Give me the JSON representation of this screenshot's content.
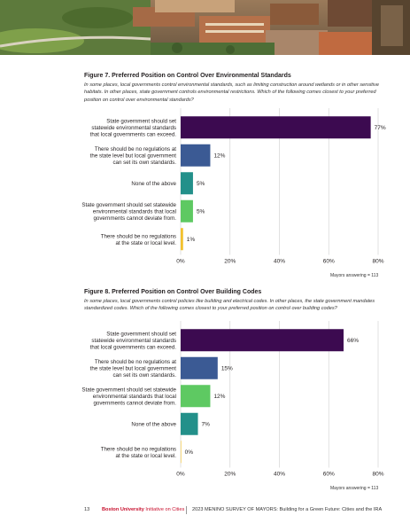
{
  "figures": [
    {
      "title": "Figure 7. Preferred Position on Control Over Environmental Standards",
      "intro": "In some places, local governments control environmental standards, such as limiting construction around wetlands or in other sensitive habitats. In other places, state government controls environmental restrictions. Which of the following comes closest to your preferred position on control over environmental standards?",
      "note": "Mayors answering = 113"
    },
    {
      "title": "Figure 8. Preferred Position on Control Over Building Codes",
      "intro": "In some places, local governments control policies like building and electrical codes. In other places, the state government mandates standardized codes. Which of the following comes closest to your preferred position on control over building codes?",
      "note": "Mayors answering = 113"
    }
  ],
  "chart_data": [
    {
      "type": "bar",
      "orientation": "horizontal",
      "categories": [
        "State government should set statewide environmental standards that local governments can exceed.",
        "There should be no regulations at the state level but local government can set its own standards.",
        "None of the above",
        "State government should set statewide environmental standards that local governments cannot deviate from.",
        "There should be no regulations at the state or local level."
      ],
      "category_lines": [
        [
          "State government should set",
          "statewide environmental standards",
          "that local governments can exceed."
        ],
        [
          "There should be no regulations at",
          "the state level but local government",
          "can set its own standards."
        ],
        [
          "None of the above"
        ],
        [
          "State government should set statewide",
          "environmental standards that local",
          "governments cannot deviate from."
        ],
        [
          "There should be no regulations",
          "at the state or local level."
        ]
      ],
      "values": [
        77,
        12,
        5,
        5,
        1
      ],
      "value_labels": [
        "77%",
        "12%",
        "5%",
        "5%",
        "1%"
      ],
      "colors": [
        "#3c0a50",
        "#3b5a94",
        "#23908a",
        "#5ec962",
        "#f2c12e"
      ],
      "xlim": [
        0,
        80
      ],
      "xticks": [
        "0%",
        "20%",
        "40%",
        "60%",
        "80%"
      ],
      "grid": true
    },
    {
      "type": "bar",
      "orientation": "horizontal",
      "categories": [
        "State government should set statewide environmental standards that local governments can exceed.",
        "There should be no regulations at the state level but local government can set its own standards.",
        "State government should set statewide environmental standards that local governments cannot deviate from.",
        "None of the above",
        "There should be no regulations at the state or local level."
      ],
      "category_lines": [
        [
          "State government should set",
          "statewide environmental standards",
          "that local governments can exceed."
        ],
        [
          "There should be no regulations at",
          "the state level but local government",
          "can set its own standards."
        ],
        [
          "State government should set statewide",
          "environmental standards that local",
          "governments cannot deviate from."
        ],
        [
          "None of the above"
        ],
        [
          "There should be no regulations",
          "at the state or local level."
        ]
      ],
      "values": [
        66,
        15,
        12,
        7,
        0
      ],
      "value_labels": [
        "66%",
        "15%",
        "12%",
        "7%",
        "0%"
      ],
      "colors": [
        "#3c0a50",
        "#3b5a94",
        "#5ec962",
        "#23908a",
        "#f2c12e"
      ],
      "xlim": [
        0,
        80
      ],
      "xticks": [
        "0%",
        "20%",
        "40%",
        "60%",
        "80%"
      ],
      "grid": true
    }
  ],
  "footer": {
    "page_number": "13",
    "org_bold": "Boston University",
    "org_rest": " Initiative on Cities",
    "running_title": "2023 MENINO SURVEY OF MAYORS: Building for a Green Future: Cities and the IRA"
  }
}
